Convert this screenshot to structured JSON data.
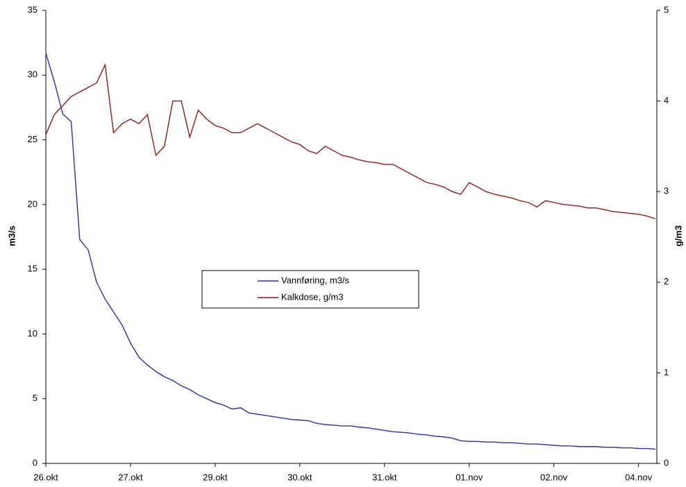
{
  "chart_data": {
    "type": "line",
    "categories": [
      "26.okt",
      null,
      null,
      null,
      null,
      null,
      null,
      null,
      null,
      null,
      "27.okt",
      null,
      null,
      null,
      null,
      null,
      null,
      null,
      null,
      null,
      "29.okt",
      null,
      null,
      null,
      null,
      null,
      null,
      null,
      null,
      null,
      "30.okt",
      null,
      null,
      null,
      null,
      null,
      null,
      null,
      null,
      null,
      "31.okt",
      null,
      null,
      null,
      null,
      null,
      null,
      null,
      null,
      null,
      "01.nov",
      null,
      null,
      null,
      null,
      null,
      null,
      null,
      null,
      null,
      "02.nov",
      null,
      null,
      null,
      null,
      null,
      null,
      null,
      null,
      null,
      "04.nov",
      null,
      null
    ],
    "ylabel": "m3/s",
    "y2label": "g/m3",
    "ylim": [
      0,
      35
    ],
    "yticks": [
      0,
      5,
      10,
      15,
      20,
      25,
      30,
      35
    ],
    "y2lim": [
      0,
      5
    ],
    "y2ticks": [
      0,
      1,
      2,
      3,
      4,
      5
    ],
    "grid": false,
    "legend": "center",
    "series": [
      {
        "name": "Vannføring, m3/s",
        "color": "#2e2e9e",
        "values": [
          31.7,
          29.5,
          27.0,
          26.4,
          17.3,
          16.5,
          14.0,
          12.7,
          11.7,
          10.7,
          9.3,
          8.2,
          7.6,
          7.1,
          6.7,
          6.4,
          6.0,
          5.7,
          5.3,
          5.0,
          4.7,
          4.5,
          4.2,
          4.3,
          3.9,
          3.8,
          3.7,
          3.6,
          3.5,
          3.4,
          3.35,
          3.3,
          3.1,
          3.0,
          2.95,
          2.9,
          2.9,
          2.8,
          2.75,
          2.65,
          2.55,
          2.45,
          2.4,
          2.35,
          2.25,
          2.2,
          2.1,
          2.05,
          1.95,
          1.75,
          1.7,
          1.7,
          1.65,
          1.65,
          1.6,
          1.6,
          1.55,
          1.5,
          1.5,
          1.45,
          1.4,
          1.35,
          1.35,
          1.3,
          1.3,
          1.3,
          1.25,
          1.25,
          1.2,
          1.2,
          1.15,
          1.15,
          1.1
        ]
      },
      {
        "name": "Kalkdose, g/m3",
        "color": "#8b1a1a",
        "axis": "y2",
        "values": [
          3.63,
          3.85,
          3.95,
          4.05,
          4.1,
          4.15,
          4.2,
          4.4,
          3.65,
          3.75,
          3.8,
          3.75,
          3.85,
          3.4,
          3.5,
          4.0,
          4.0,
          3.6,
          3.9,
          3.8,
          3.73,
          3.7,
          3.65,
          3.65,
          3.7,
          3.75,
          3.7,
          3.65,
          3.6,
          3.55,
          3.52,
          3.45,
          3.42,
          3.5,
          3.45,
          3.4,
          3.38,
          3.35,
          3.33,
          3.32,
          3.3,
          3.3,
          3.25,
          3.2,
          3.15,
          3.1,
          3.08,
          3.05,
          3.0,
          2.97,
          3.1,
          3.05,
          3.0,
          2.97,
          2.95,
          2.93,
          2.9,
          2.88,
          2.83,
          2.9,
          2.88,
          2.86,
          2.85,
          2.84,
          2.82,
          2.82,
          2.8,
          2.78,
          2.77,
          2.76,
          2.75,
          2.73,
          2.7
        ]
      }
    ]
  }
}
